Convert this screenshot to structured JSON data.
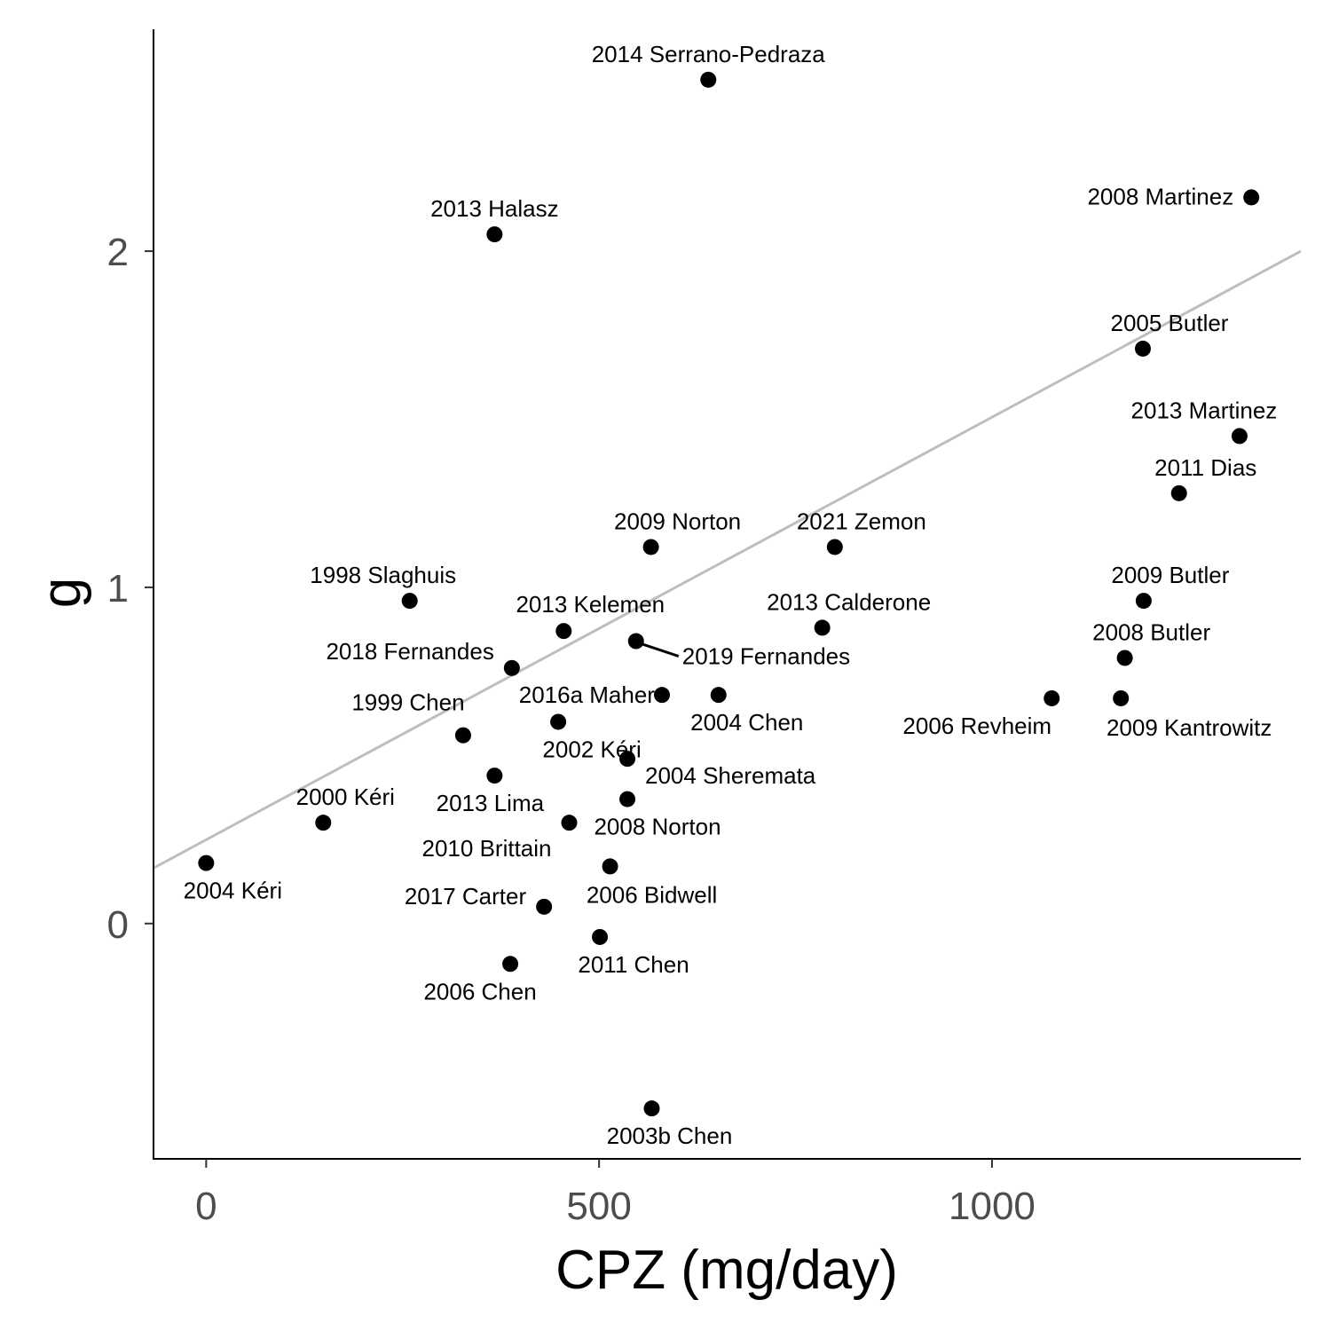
{
  "chart_data": {
    "type": "scatter",
    "xlabel": "CPZ (mg/day)",
    "ylabel": "g",
    "xlim": [
      -67,
      1393
    ],
    "ylim": [
      -0.7,
      2.66
    ],
    "x_ticks": [
      0,
      500,
      1000
    ],
    "y_ticks": [
      0,
      1,
      2
    ],
    "grid": false,
    "legend": "none",
    "trend_line": {
      "x0": -67,
      "y0": 0.165,
      "x1": 1393,
      "y1": 2.0,
      "color": "#bebebe"
    },
    "point_color": "#000000",
    "points": [
      {
        "label": "2014 Serrano-Pedraza",
        "x": 639,
        "y": 2.51
      },
      {
        "label": "2013 Halasz",
        "x": 367,
        "y": 2.05
      },
      {
        "label": "2008 Martinez",
        "x": 1330,
        "y": 2.16
      },
      {
        "label": "2005 Butler",
        "x": 1192,
        "y": 1.71
      },
      {
        "label": "2013 Martinez",
        "x": 1315,
        "y": 1.45
      },
      {
        "label": "2011 Dias",
        "x": 1238,
        "y": 1.28
      },
      {
        "label": "2009 Norton",
        "x": 566,
        "y": 1.12
      },
      {
        "label": "2021 Zemon",
        "x": 800,
        "y": 1.12
      },
      {
        "label": "1998 Slaghuis",
        "x": 259,
        "y": 0.96
      },
      {
        "label": "2009 Butler",
        "x": 1193,
        "y": 0.96
      },
      {
        "label": "2013 Kelemen",
        "x": 455,
        "y": 0.87
      },
      {
        "label": "2013 Calderone",
        "x": 784,
        "y": 0.88
      },
      {
        "label": "2019 Fernandes",
        "x": 547,
        "y": 0.84
      },
      {
        "label": "2018 Fernandes",
        "x": 389,
        "y": 0.76
      },
      {
        "label": "2008 Butler",
        "x": 1169,
        "y": 0.79
      },
      {
        "label": "2016a Maher",
        "x": 580,
        "y": 0.68
      },
      {
        "label": "2004 Chen",
        "x": 652,
        "y": 0.68
      },
      {
        "label": "2006 Revheim",
        "x": 1076,
        "y": 0.67
      },
      {
        "label": "2009 Kantrowitz",
        "x": 1164,
        "y": 0.67
      },
      {
        "label": "1999 Chen",
        "x": 327,
        "y": 0.56
      },
      {
        "label": "2002 Kéri",
        "x": 448,
        "y": 0.6
      },
      {
        "label": "2004 Sheremata",
        "x": 536,
        "y": 0.49
      },
      {
        "label": "2013 Lima",
        "x": 367,
        "y": 0.44
      },
      {
        "label": "2008 Norton",
        "x": 536,
        "y": 0.37
      },
      {
        "label": "2000 Kéri",
        "x": 149,
        "y": 0.3
      },
      {
        "label": "2010 Brittain",
        "x": 462,
        "y": 0.3
      },
      {
        "label": "2004 Kéri",
        "x": 0,
        "y": 0.18
      },
      {
        "label": "2006 Bidwell",
        "x": 514,
        "y": 0.17
      },
      {
        "label": "2017 Carter",
        "x": 430,
        "y": 0.05
      },
      {
        "label": "2011 Chen",
        "x": 501,
        "y": -0.04
      },
      {
        "label": "2006 Chen",
        "x": 387,
        "y": -0.12
      },
      {
        "label": "2003b Chen",
        "x": 567,
        "y": -0.55
      }
    ]
  }
}
